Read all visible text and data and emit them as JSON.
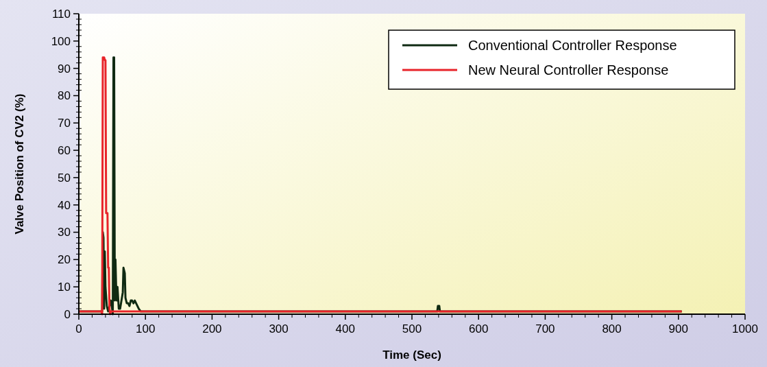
{
  "chart_data": {
    "type": "line",
    "xlabel": "Time (Sec)",
    "ylabel": "Valve Position of CV2 (%)",
    "xlim": [
      0,
      1000
    ],
    "xticks": [
      0,
      100,
      200,
      300,
      400,
      500,
      600,
      700,
      800,
      900,
      1000
    ],
    "ylim": [
      0,
      110
    ],
    "yticks": [
      0,
      10,
      20,
      30,
      40,
      50,
      60,
      70,
      80,
      90,
      100,
      110
    ],
    "grid": false,
    "legend": "top right",
    "marker": "none",
    "line_style": "solid",
    "series": [
      {
        "name": "Conventional Controller Response",
        "color": "#0f2a12",
        "x": [
          0,
          35,
          36,
          37,
          38,
          39,
          40,
          42,
          44,
          46,
          48,
          50,
          51,
          52,
          53,
          54,
          55,
          56,
          57,
          58,
          60,
          62,
          64,
          66,
          67,
          68,
          69,
          70,
          72,
          74,
          76,
          78,
          80,
          82,
          84,
          86,
          88,
          90,
          93,
          96,
          100,
          538,
          539,
          541,
          542,
          905
        ],
        "values": [
          1,
          1,
          30,
          28,
          2,
          23,
          10,
          3,
          1,
          3,
          5,
          2,
          0,
          94,
          94,
          5,
          20,
          10,
          5,
          10,
          2,
          2,
          5,
          8,
          17,
          16,
          15,
          6,
          4,
          4,
          3,
          5,
          5,
          4,
          5,
          4,
          3,
          2,
          1,
          1,
          1,
          1,
          3,
          3,
          1,
          1
        ]
      },
      {
        "name": "New Neural Controller Response",
        "color": "#e8242a",
        "x": [
          0,
          34,
          35,
          36,
          38,
          39,
          40,
          41,
          43,
          44,
          45,
          46,
          47,
          48,
          905
        ],
        "values": [
          1,
          1,
          0,
          94,
          94,
          93,
          93,
          37,
          37,
          17,
          17,
          2,
          0,
          1,
          1
        ]
      }
    ]
  }
}
